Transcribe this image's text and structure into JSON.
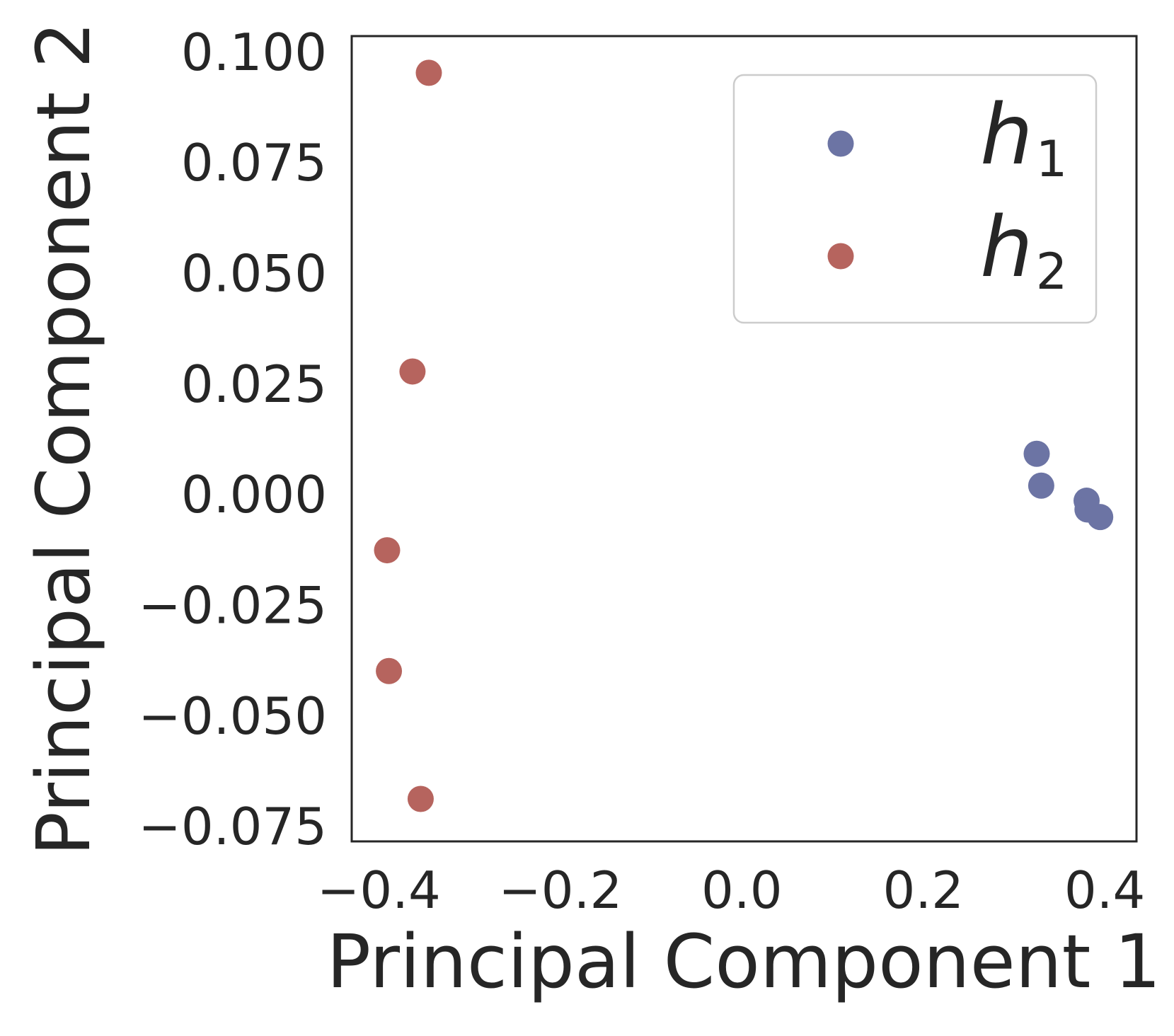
{
  "chart_data": {
    "type": "scatter",
    "title": "",
    "xlabel": "Principal Component 1",
    "ylabel": "Principal Component 2",
    "xlim": [
      -0.43,
      0.435
    ],
    "ylim": [
      -0.0785,
      0.1035
    ],
    "xticks": [
      -0.4,
      -0.2,
      0.0,
      0.2,
      0.4
    ],
    "xtick_labels": [
      "−0.4",
      "−0.2",
      "0.0",
      "0.2",
      "0.4"
    ],
    "yticks": [
      0.1,
      0.075,
      0.05,
      0.025,
      0.0,
      -0.025,
      -0.05,
      -0.075
    ],
    "ytick_labels": [
      "0.100",
      "0.075",
      "0.050",
      "0.025",
      "0.000",
      "−0.025",
      "−0.050",
      "−0.075"
    ],
    "grid": false,
    "legend_position": "top-right",
    "series": [
      {
        "legend_base": "h",
        "legend_sub": "1",
        "color": "#6c74a4",
        "x": [
          0.325,
          0.33,
          0.38,
          0.381,
          0.395
        ],
        "y": [
          0.0091,
          0.0019,
          -0.0015,
          -0.0035,
          -0.0052
        ]
      },
      {
        "legend_base": "h",
        "legend_sub": "2",
        "color": "#b6645e",
        "x": [
          -0.345,
          -0.363,
          -0.391,
          -0.389,
          -0.354
        ],
        "y": [
          0.0952,
          0.0277,
          -0.0127,
          -0.04,
          -0.0689
        ]
      }
    ]
  }
}
